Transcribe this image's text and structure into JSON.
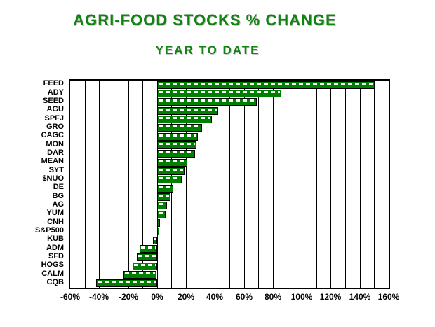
{
  "chart_data": {
    "type": "bar",
    "orientation": "horizontal",
    "title": "AGRI-FOOD STOCKS % CHANGE",
    "subtitle": "YEAR TO DATE",
    "categories": [
      "FEED",
      "ADY",
      "SEED",
      "AGU",
      "SPFJ",
      "GRO",
      "CAGC",
      "MON",
      "DAR",
      "MEAN",
      "SYT",
      "$NUO",
      "DE",
      "BG",
      "AG",
      "YUM",
      "CNH",
      "S&P500",
      "KUB",
      "ADM",
      "SFD",
      "HOGS",
      "CALM",
      "CQB"
    ],
    "values": [
      150,
      86,
      69,
      42,
      38,
      31,
      28,
      27,
      26,
      21,
      19,
      17,
      11,
      9,
      7,
      6,
      2,
      1,
      -3,
      -12,
      -14,
      -17,
      -23,
      -42
    ],
    "value_unit": "%",
    "xlim": [
      -60,
      160
    ],
    "x_tick_step": 20,
    "gridline_step": 10,
    "x_tick_labels": [
      "-60%",
      "-40%",
      "-20%",
      "0%",
      "20%",
      "40%",
      "60%",
      "80%",
      "100%",
      "120%",
      "140%",
      "160%"
    ],
    "grid": "vertical-black-lines",
    "legend": "none",
    "sorted": "descending",
    "colors": {
      "bar_fill": "#008000",
      "bar_border": "#000000",
      "title_text": "#128212",
      "axis_text": "#000000",
      "grid_line": "#000000",
      "background": "#ffffff"
    }
  }
}
